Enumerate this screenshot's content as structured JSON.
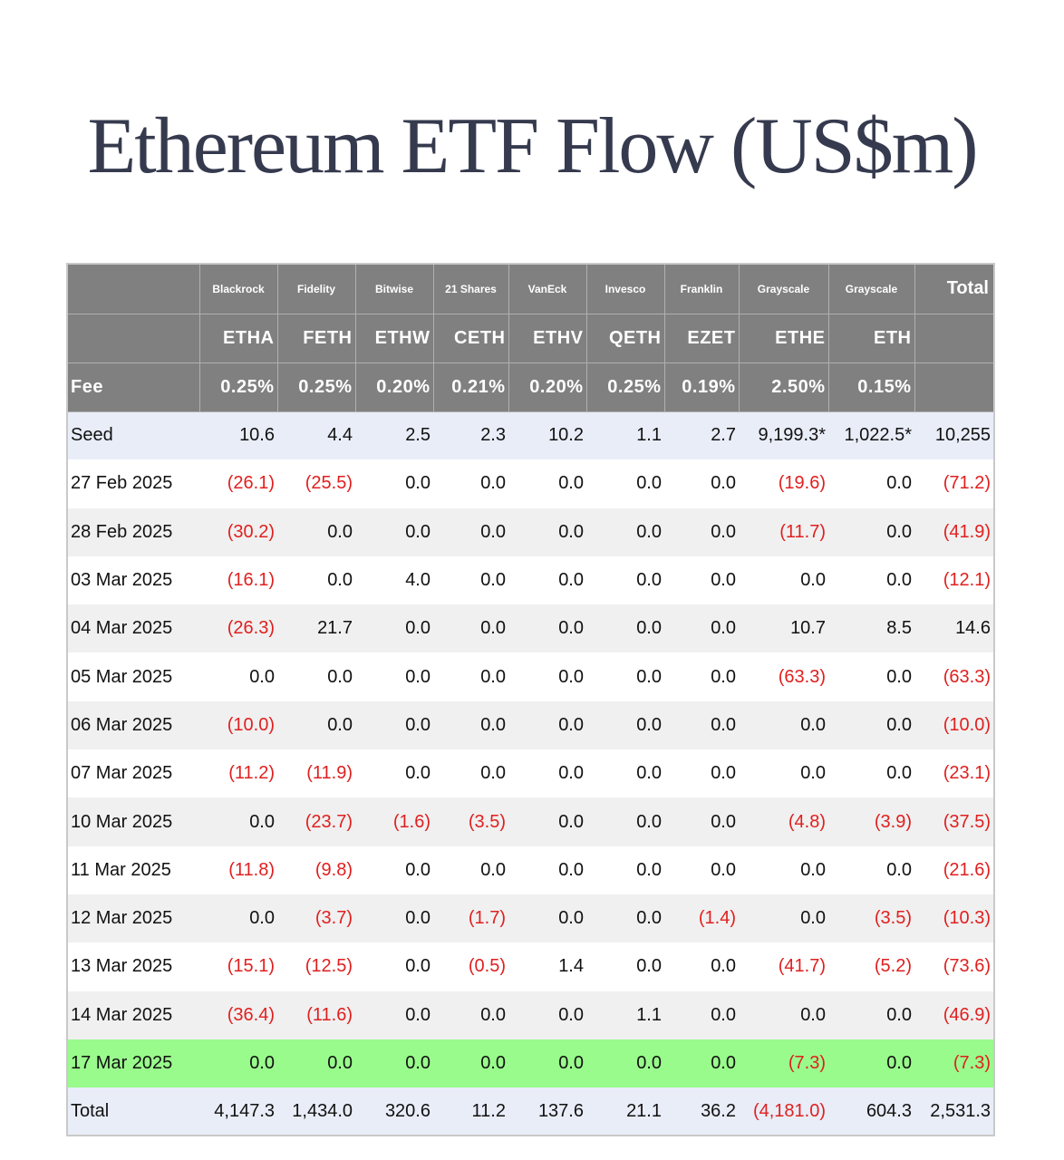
{
  "title": "Ethereum ETF Flow (US$m)",
  "colors": {
    "header_bg": "#808080",
    "negative": "#e0201f",
    "highlight_row": "#99fb8c",
    "seed_row": "#e9edf8",
    "title": "#363a4e"
  },
  "table": {
    "issuers": [
      "Blackrock",
      "Fidelity",
      "Bitwise",
      "21 Shares",
      "VanEck",
      "Invesco",
      "Franklin",
      "Grayscale",
      "Grayscale"
    ],
    "total_label": "Total",
    "tickers": [
      "ETHA",
      "FETH",
      "ETHW",
      "CETH",
      "ETHV",
      "QETH",
      "EZET",
      "ETHE",
      "ETH"
    ],
    "fee_label": "Fee",
    "fees": [
      "0.25%",
      "0.25%",
      "0.20%",
      "0.21%",
      "0.20%",
      "0.25%",
      "0.19%",
      "2.50%",
      "0.15%"
    ],
    "rows": [
      {
        "label": "Seed",
        "cells": [
          "10.6",
          "4.4",
          "2.5",
          "2.3",
          "10.2",
          "1.1",
          "2.7",
          "9,199.3*",
          "1,022.5*",
          "10,255"
        ]
      },
      {
        "label": "27 Feb 2025",
        "cells": [
          "(26.1)",
          "(25.5)",
          "0.0",
          "0.0",
          "0.0",
          "0.0",
          "0.0",
          "(19.6)",
          "0.0",
          "(71.2)"
        ]
      },
      {
        "label": "28 Feb 2025",
        "cells": [
          "(30.2)",
          "0.0",
          "0.0",
          "0.0",
          "0.0",
          "0.0",
          "0.0",
          "(11.7)",
          "0.0",
          "(41.9)"
        ]
      },
      {
        "label": "03 Mar 2025",
        "cells": [
          "(16.1)",
          "0.0",
          "4.0",
          "0.0",
          "0.0",
          "0.0",
          "0.0",
          "0.0",
          "0.0",
          "(12.1)"
        ]
      },
      {
        "label": "04 Mar 2025",
        "cells": [
          "(26.3)",
          "21.7",
          "0.0",
          "0.0",
          "0.0",
          "0.0",
          "0.0",
          "10.7",
          "8.5",
          "14.6"
        ]
      },
      {
        "label": "05 Mar 2025",
        "cells": [
          "0.0",
          "0.0",
          "0.0",
          "0.0",
          "0.0",
          "0.0",
          "0.0",
          "(63.3)",
          "0.0",
          "(63.3)"
        ]
      },
      {
        "label": "06 Mar 2025",
        "cells": [
          "(10.0)",
          "0.0",
          "0.0",
          "0.0",
          "0.0",
          "0.0",
          "0.0",
          "0.0",
          "0.0",
          "(10.0)"
        ]
      },
      {
        "label": "07 Mar 2025",
        "cells": [
          "(11.2)",
          "(11.9)",
          "0.0",
          "0.0",
          "0.0",
          "0.0",
          "0.0",
          "0.0",
          "0.0",
          "(23.1)"
        ]
      },
      {
        "label": "10 Mar 2025",
        "cells": [
          "0.0",
          "(23.7)",
          "(1.6)",
          "(3.5)",
          "0.0",
          "0.0",
          "0.0",
          "(4.8)",
          "(3.9)",
          "(37.5)"
        ]
      },
      {
        "label": "11 Mar 2025",
        "cells": [
          "(11.8)",
          "(9.8)",
          "0.0",
          "0.0",
          "0.0",
          "0.0",
          "0.0",
          "0.0",
          "0.0",
          "(21.6)"
        ]
      },
      {
        "label": "12 Mar 2025",
        "cells": [
          "0.0",
          "(3.7)",
          "0.0",
          "(1.7)",
          "0.0",
          "0.0",
          "(1.4)",
          "0.0",
          "(3.5)",
          "(10.3)"
        ]
      },
      {
        "label": "13 Mar 2025",
        "cells": [
          "(15.1)",
          "(12.5)",
          "0.0",
          "(0.5)",
          "1.4",
          "0.0",
          "0.0",
          "(41.7)",
          "(5.2)",
          "(73.6)"
        ]
      },
      {
        "label": "14 Mar 2025",
        "cells": [
          "(36.4)",
          "(11.6)",
          "0.0",
          "0.0",
          "0.0",
          "1.1",
          "0.0",
          "0.0",
          "0.0",
          "(46.9)"
        ]
      },
      {
        "label": "17 Mar 2025",
        "cells": [
          "0.0",
          "0.0",
          "0.0",
          "0.0",
          "0.0",
          "0.0",
          "0.0",
          "(7.3)",
          "0.0",
          "(7.3)"
        ]
      }
    ],
    "totals": {
      "label": "Total",
      "cells": [
        "4,147.3",
        "1,434.0",
        "320.6",
        "11.2",
        "137.6",
        "21.1",
        "36.2",
        "(4,181.0)",
        "604.3",
        "2,531.3"
      ]
    }
  }
}
